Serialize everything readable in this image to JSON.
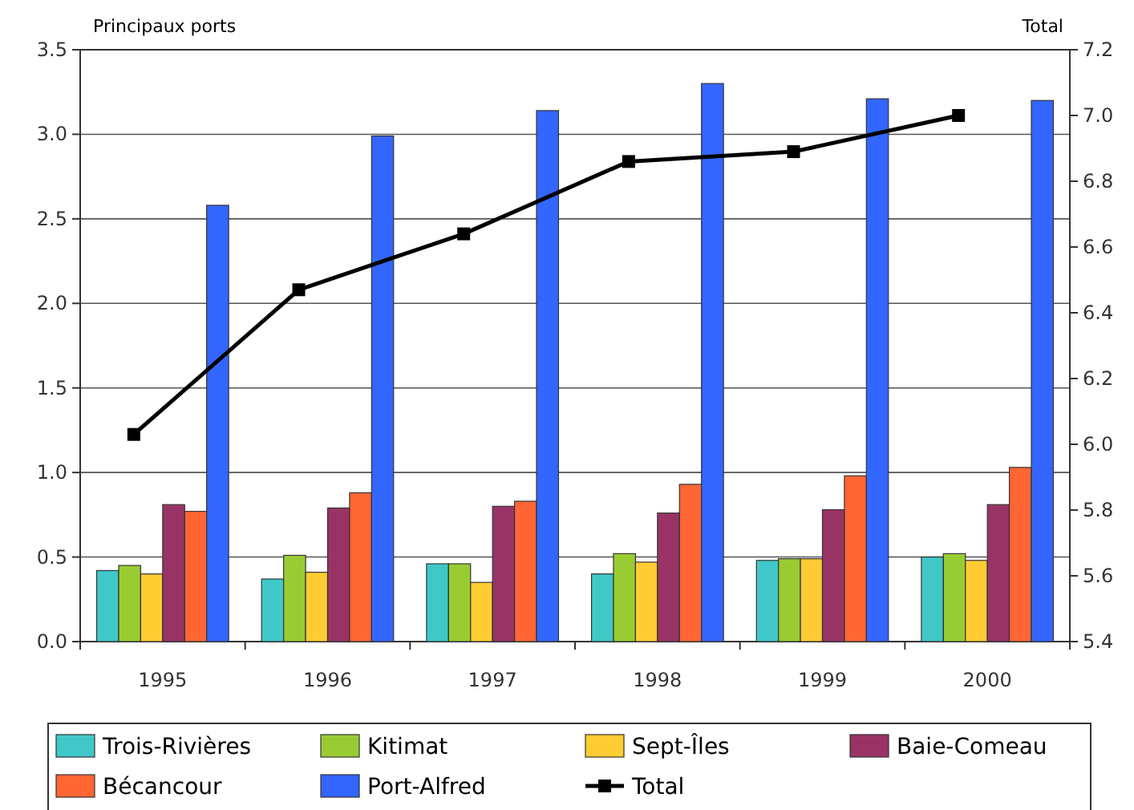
{
  "chart_data": {
    "type": "bar",
    "ylabel": "Principaux ports",
    "y2label": "Total",
    "categories": [
      "1995",
      "1996",
      "1997",
      "1998",
      "1999",
      "2000"
    ],
    "series": [
      {
        "name": "Trois-Rivières",
        "color": "#40c8c8",
        "values": [
          0.42,
          0.37,
          0.46,
          0.4,
          0.48,
          0.5
        ]
      },
      {
        "name": "Kitimat",
        "color": "#99cc33",
        "values": [
          0.45,
          0.51,
          0.46,
          0.52,
          0.49,
          0.52
        ]
      },
      {
        "name": "Sept-Îles",
        "color": "#ffcc33",
        "values": [
          0.4,
          0.41,
          0.35,
          0.47,
          0.49,
          0.48
        ]
      },
      {
        "name": "Baie-Comeau",
        "color": "#993366",
        "values": [
          0.81,
          0.79,
          0.8,
          0.76,
          0.78,
          0.81
        ]
      },
      {
        "name": "Bécancour",
        "color": "#ff6633",
        "values": [
          0.77,
          0.88,
          0.83,
          0.93,
          0.98,
          1.03
        ]
      },
      {
        "name": "Port-Alfred",
        "color": "#3366ff",
        "values": [
          2.58,
          2.99,
          3.14,
          3.3,
          3.21,
          3.2
        ]
      },
      {
        "name": "Total",
        "color": "#000000",
        "type": "line",
        "axis": "y2",
        "marker": "square",
        "values": [
          6.03,
          6.47,
          6.64,
          6.86,
          6.89,
          7.0
        ]
      }
    ],
    "ylim": [
      0,
      3.5
    ],
    "yticks": [
      {
        "value": 0,
        "label": "0.0"
      },
      0.5,
      {
        "value": 1,
        "label": "1.0"
      },
      1.5,
      {
        "value": 2,
        "label": "2.0"
      },
      2.5,
      {
        "value": 3,
        "label": "3.0"
      },
      3.5
    ],
    "y2lim": [
      5.4,
      7.2
    ],
    "y2ticks": [
      5.4,
      5.6,
      5.8,
      {
        "value": 6,
        "label": "6.0"
      },
      6.2,
      6.4,
      6.6,
      6.8,
      {
        "value": 7,
        "label": "7.0"
      },
      7.2
    ],
    "grid": "y",
    "legend": "bottom"
  }
}
